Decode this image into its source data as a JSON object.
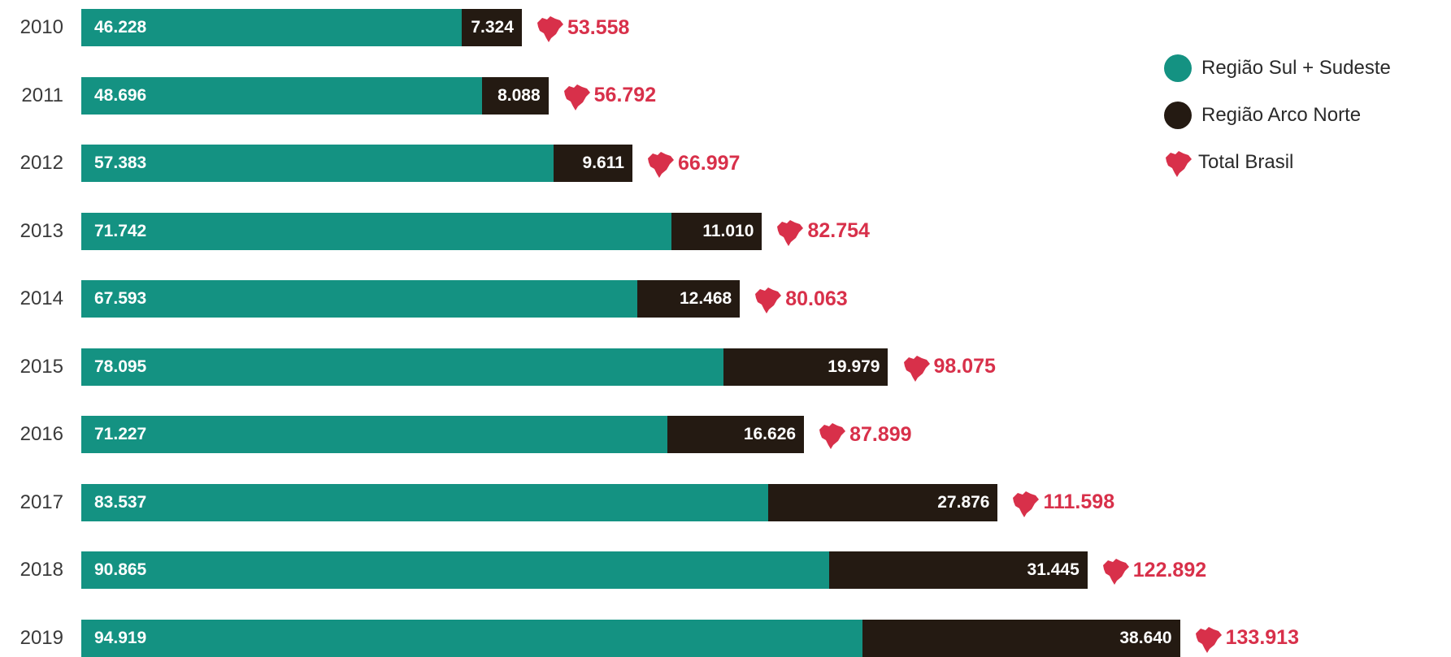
{
  "colors": {
    "sul_sudeste": "#149282",
    "arco_norte": "#241a12",
    "total": "#d8304a"
  },
  "legend": [
    {
      "label": "Região Sul + Sudeste",
      "icon": "teal-dot-icon"
    },
    {
      "label": "Região Arco Norte",
      "icon": "dark-dot-icon"
    },
    {
      "label": "Total Brasil",
      "icon": "brazil-map-icon"
    }
  ],
  "chart_data": {
    "type": "bar",
    "orientation": "horizontal",
    "stacked": true,
    "categories": [
      "2010",
      "2011",
      "2012",
      "2013",
      "2014",
      "2015",
      "2016",
      "2017",
      "2018",
      "2019"
    ],
    "series": [
      {
        "name": "Região Sul + Sudeste",
        "values": [
          46228,
          48696,
          57383,
          71742,
          67593,
          78095,
          71227,
          83537,
          90865,
          94919
        ],
        "labels": [
          "46.228",
          "48.696",
          "57.383",
          "71.742",
          "67.593",
          "78.095",
          "71.227",
          "83.537",
          "90.865",
          "94.919"
        ]
      },
      {
        "name": "Região Arco Norte",
        "values": [
          7324,
          8088,
          9611,
          11010,
          12468,
          19979,
          16626,
          27876,
          31445,
          38640
        ],
        "labels": [
          "7.324",
          "8.088",
          "9.611",
          "11.010",
          "12.468",
          "19.979",
          "16.626",
          "27.876",
          "31.445",
          "38.640"
        ]
      }
    ],
    "totals": {
      "name": "Total Brasil",
      "values": [
        53558,
        56792,
        66997,
        82754,
        80063,
        98075,
        87899,
        111598,
        122892,
        133913
      ],
      "labels": [
        "53.558",
        "56.792",
        "66.997",
        "82.754",
        "80.063",
        "98.075",
        "87.899",
        "111.598",
        "122.892",
        "133.913"
      ]
    },
    "legend_position": "top-right",
    "grid": false
  }
}
